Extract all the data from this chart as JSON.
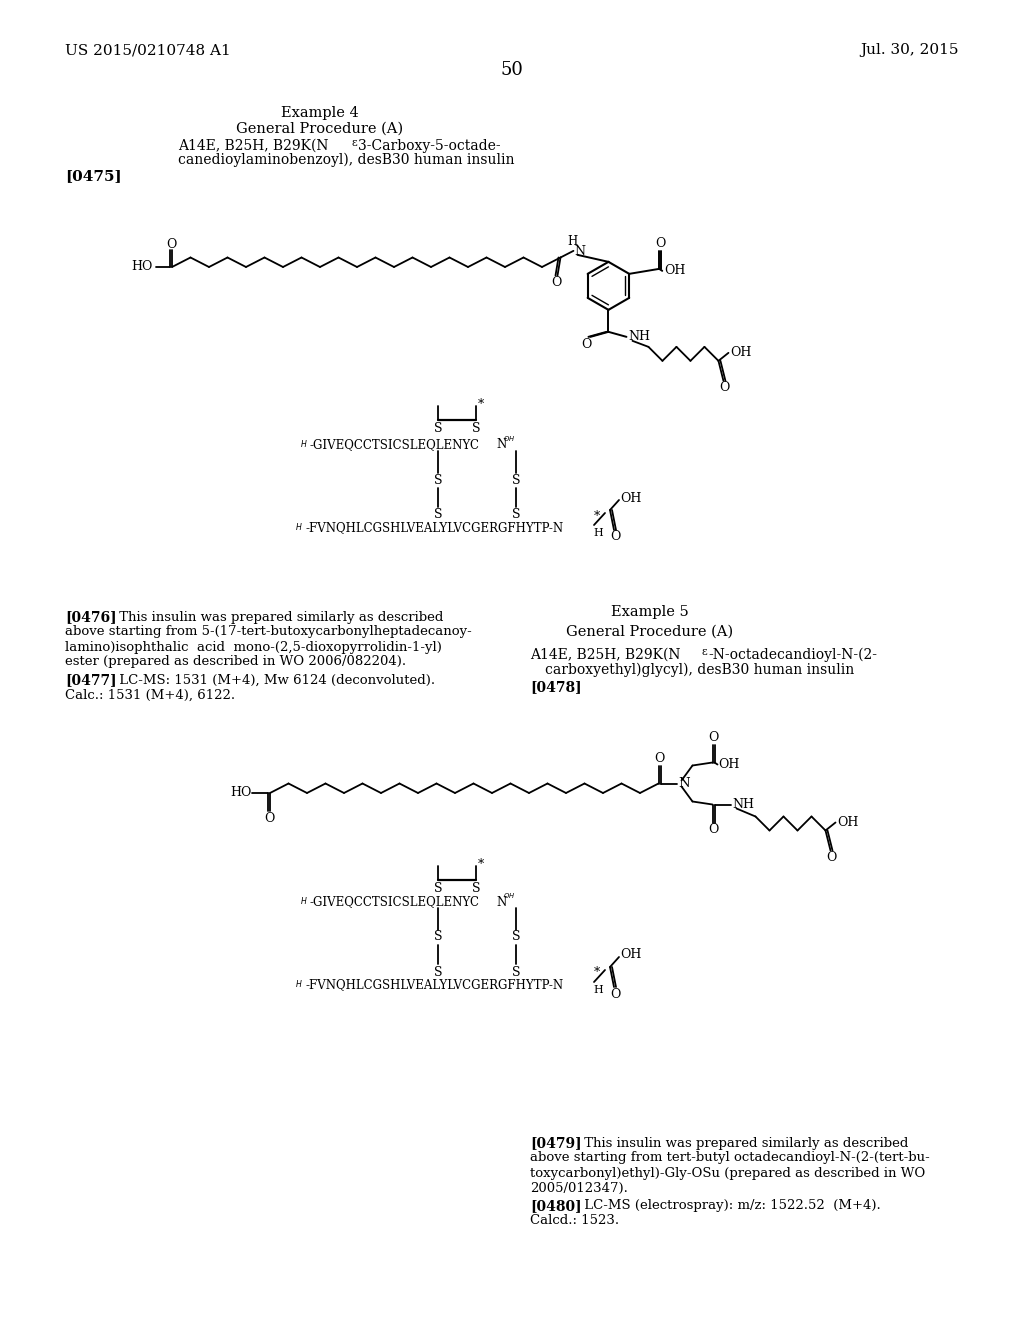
{
  "bg_color": "#ffffff",
  "header_left": "US 2015/0210748 A1",
  "header_right": "Jul. 30, 2015",
  "page_number": "50"
}
